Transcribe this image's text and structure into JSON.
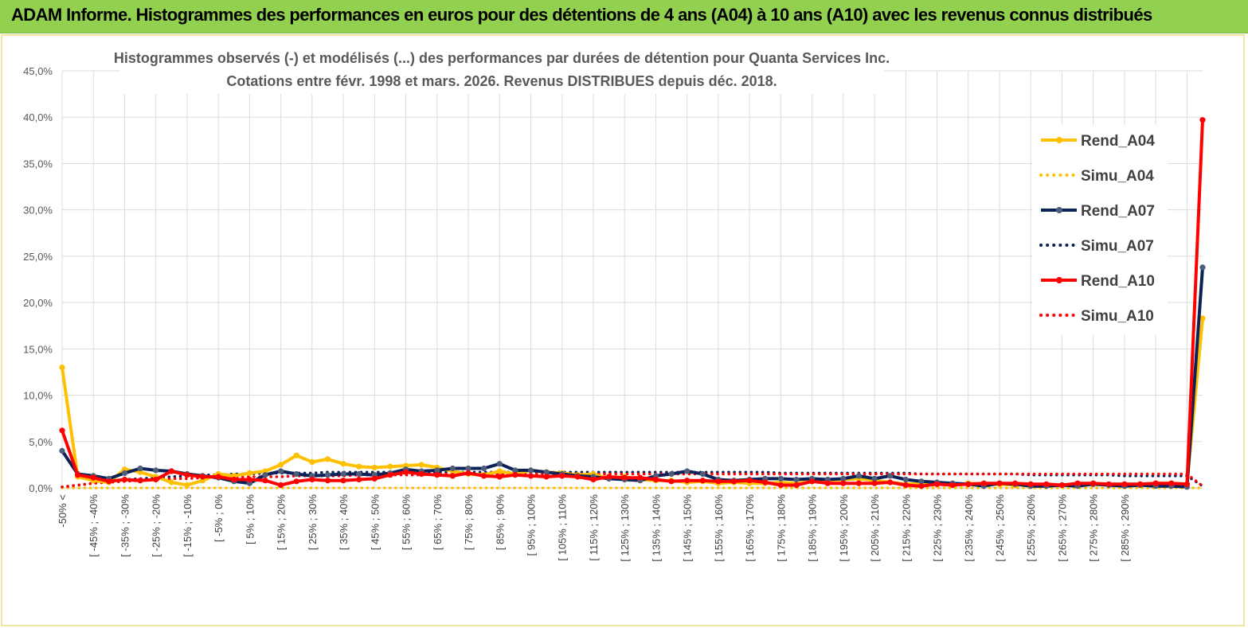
{
  "header": {
    "title": "ADAM Informe. Histogrammes des performances en euros pour des détentions de 4 ans (A04) à 10 ans (A10) avec les revenus connus distribués"
  },
  "chart_data": {
    "type": "line",
    "title": "Histogrammes observés (-) et modélisés (...) des performances par durées de détention pour Quanta Services Inc.",
    "subtitle": "Cotations entre févr. 1998 et mars. 2026. Revenus DISTRIBUES depuis déc. 2018.",
    "xlabel": "",
    "ylabel": "",
    "ylim": [
      0,
      45
    ],
    "grid": true,
    "legend_position": "right",
    "y_ticks": [
      "0,0%",
      "5,0%",
      "10,0%",
      "15,0%",
      "20,0%",
      "25,0%",
      "30,0%",
      "35,0%",
      "40,0%",
      "45,0%"
    ],
    "x_tick_labels": [
      "-50% <",
      "[ -45% ; -40%",
      "[ -35% ; -30%",
      "[ -25% ; -20%",
      "[ -15% ; -10%",
      "[ -5% ; 0%",
      "[ 5% ; 10%",
      "[ 15% ; 20%",
      "[ 25% ; 30%",
      "[ 35% ; 40%",
      "[ 45% ; 50%",
      "[ 55% ; 60%",
      "[ 65% ; 70%",
      "[ 75% ; 80%",
      "[ 85% ; 90%",
      "[ 95% ; 100%",
      "[ 105% ; 110%",
      "[ 115% ; 120%",
      "[ 125% ; 130%",
      "[ 135% ; 140%",
      "[ 145% ; 150%",
      "[ 155% ; 160%",
      "[ 165% ; 170%",
      "[ 175% ; 180%",
      "[ 185% ; 190%",
      "[ 195% ; 200%",
      "[ 205% ; 210%",
      "[ 215% ; 220%",
      "[ 225% ; 230%",
      "[ 235% ; 240%",
      "[ 245% ; 250%",
      "[ 255% ; 260%",
      "[ 265% ; 270%",
      "[ 275% ; 280%",
      "[ 285% ; 290%"
    ],
    "series": [
      {
        "name": "Rend_A04",
        "style": "solid",
        "markers": true,
        "color": "#ffc000",
        "values": [
          13.0,
          1.2,
          0.8,
          0.6,
          2.0,
          1.7,
          1.2,
          0.6,
          0.3,
          0.8,
          1.5,
          1.3,
          1.6,
          1.8,
          2.5,
          3.5,
          2.8,
          3.1,
          2.6,
          2.3,
          2.2,
          2.3,
          2.4,
          2.5,
          2.2,
          1.8,
          1.5,
          1.4,
          1.8,
          1.5,
          1.9,
          1.7,
          1.6,
          1.4,
          1.5,
          1.0,
          1.2,
          0.9,
          0.8,
          0.8,
          0.6,
          0.7,
          0.5,
          0.6,
          0.5,
          0.5,
          0.6,
          0.5,
          0.7,
          0.8,
          0.9,
          1.0,
          0.8,
          0.6,
          0.4,
          0.5,
          0.4,
          0.3,
          0.5,
          0.4,
          0.4,
          0.3,
          0.4,
          0.3,
          0.3,
          0.3,
          0.4,
          0.3,
          0.3,
          0.4,
          0.5,
          0.5,
          0.4,
          18.3
        ]
      },
      {
        "name": "Simu_A04",
        "style": "dotted",
        "markers": false,
        "color": "#ffc000",
        "values": [
          0,
          0,
          0,
          0,
          0,
          0,
          0,
          0,
          0,
          0,
          0,
          0,
          0,
          0,
          0,
          0,
          0,
          0,
          0,
          0,
          0,
          0,
          0,
          0,
          0,
          0,
          0,
          0,
          0,
          0,
          0,
          0,
          0,
          0,
          0,
          0,
          0,
          0,
          0,
          0,
          0,
          0,
          0,
          0,
          0,
          0,
          0,
          0,
          0,
          0,
          0,
          0,
          0,
          0,
          0,
          0,
          0,
          0,
          0,
          0,
          0,
          0,
          0,
          0,
          0,
          0,
          0,
          0,
          0,
          0,
          0,
          0,
          0,
          0
        ]
      },
      {
        "name": "Rend_A07",
        "style": "solid",
        "markers": true,
        "color": "#0b2157",
        "values": [
          4.0,
          1.5,
          1.3,
          1.0,
          1.6,
          2.1,
          1.9,
          1.8,
          1.5,
          1.3,
          1.1,
          0.7,
          0.5,
          1.4,
          1.8,
          1.5,
          1.3,
          1.4,
          1.5,
          1.5,
          1.4,
          1.6,
          2.0,
          1.8,
          1.9,
          2.1,
          2.1,
          2.1,
          2.6,
          1.9,
          1.9,
          1.7,
          1.5,
          1.3,
          1.2,
          1.0,
          0.9,
          0.8,
          1.3,
          1.5,
          1.8,
          1.5,
          0.9,
          0.8,
          0.9,
          1.0,
          1.0,
          0.9,
          1.0,
          0.9,
          1.0,
          1.3,
          1.0,
          1.3,
          0.9,
          0.7,
          0.6,
          0.5,
          0.4,
          0.2,
          0.5,
          0.4,
          0.2,
          0.2,
          0.3,
          0.2,
          0.4,
          0.3,
          0.2,
          0.3,
          0.2,
          0.2,
          0.1,
          23.8
        ]
      },
      {
        "name": "Simu_A07",
        "style": "dotted",
        "markers": false,
        "color": "#0b2157",
        "values": [
          0.1,
          0.3,
          0.5,
          0.7,
          0.9,
          1.0,
          1.1,
          1.2,
          1.3,
          1.4,
          1.4,
          1.5,
          1.5,
          1.6,
          1.6,
          1.6,
          1.6,
          1.7,
          1.7,
          1.7,
          1.7,
          1.7,
          1.7,
          1.7,
          1.7,
          1.7,
          1.7,
          1.7,
          1.7,
          1.7,
          1.7,
          1.7,
          1.7,
          1.7,
          1.7,
          1.7,
          1.7,
          1.7,
          1.7,
          1.7,
          1.7,
          1.7,
          1.7,
          1.7,
          1.7,
          1.7,
          1.6,
          1.6,
          1.6,
          1.6,
          1.6,
          1.6,
          1.6,
          1.6,
          1.6,
          1.5,
          1.5,
          1.5,
          1.5,
          1.5,
          1.5,
          1.5,
          1.4,
          1.4,
          1.4,
          1.4,
          1.4,
          1.4,
          1.3,
          1.3,
          1.3,
          1.3,
          1.3,
          0.2
        ]
      },
      {
        "name": "Rend_A10",
        "style": "solid",
        "markers": true,
        "color": "#ff0000",
        "values": [
          6.2,
          1.4,
          1.1,
          0.7,
          0.9,
          0.8,
          0.9,
          1.8,
          1.4,
          1.2,
          1.2,
          0.9,
          0.9,
          0.8,
          0.3,
          0.7,
          0.9,
          0.8,
          0.8,
          0.9,
          1.0,
          1.4,
          1.7,
          1.5,
          1.4,
          1.3,
          1.6,
          1.3,
          1.2,
          1.4,
          1.3,
          1.2,
          1.3,
          1.2,
          0.9,
          1.2,
          1.1,
          1.1,
          0.9,
          0.7,
          0.8,
          0.8,
          0.7,
          0.7,
          0.8,
          0.6,
          0.3,
          0.3,
          0.7,
          0.5,
          0.5,
          0.5,
          0.5,
          0.6,
          0.3,
          0.2,
          0.4,
          0.3,
          0.4,
          0.5,
          0.5,
          0.5,
          0.4,
          0.4,
          0.3,
          0.5,
          0.5,
          0.4,
          0.4,
          0.4,
          0.5,
          0.5,
          0.4,
          39.7
        ]
      },
      {
        "name": "Simu_A10",
        "style": "dotted",
        "markers": false,
        "color": "#ff0000",
        "values": [
          0.1,
          0.3,
          0.5,
          0.6,
          0.7,
          0.8,
          0.9,
          1.0,
          1.0,
          1.1,
          1.1,
          1.1,
          1.2,
          1.2,
          1.2,
          1.3,
          1.3,
          1.3,
          1.3,
          1.4,
          1.4,
          1.4,
          1.4,
          1.4,
          1.5,
          1.5,
          1.5,
          1.5,
          1.5,
          1.5,
          1.5,
          1.5,
          1.5,
          1.5,
          1.5,
          1.5,
          1.5,
          1.5,
          1.5,
          1.5,
          1.5,
          1.5,
          1.5,
          1.5,
          1.5,
          1.5,
          1.5,
          1.5,
          1.5,
          1.5,
          1.5,
          1.5,
          1.5,
          1.5,
          1.5,
          1.5,
          1.5,
          1.5,
          1.5,
          1.5,
          1.5,
          1.5,
          1.5,
          1.5,
          1.5,
          1.5,
          1.5,
          1.5,
          1.5,
          1.5,
          1.5,
          1.5,
          1.5,
          0.2
        ]
      }
    ]
  }
}
